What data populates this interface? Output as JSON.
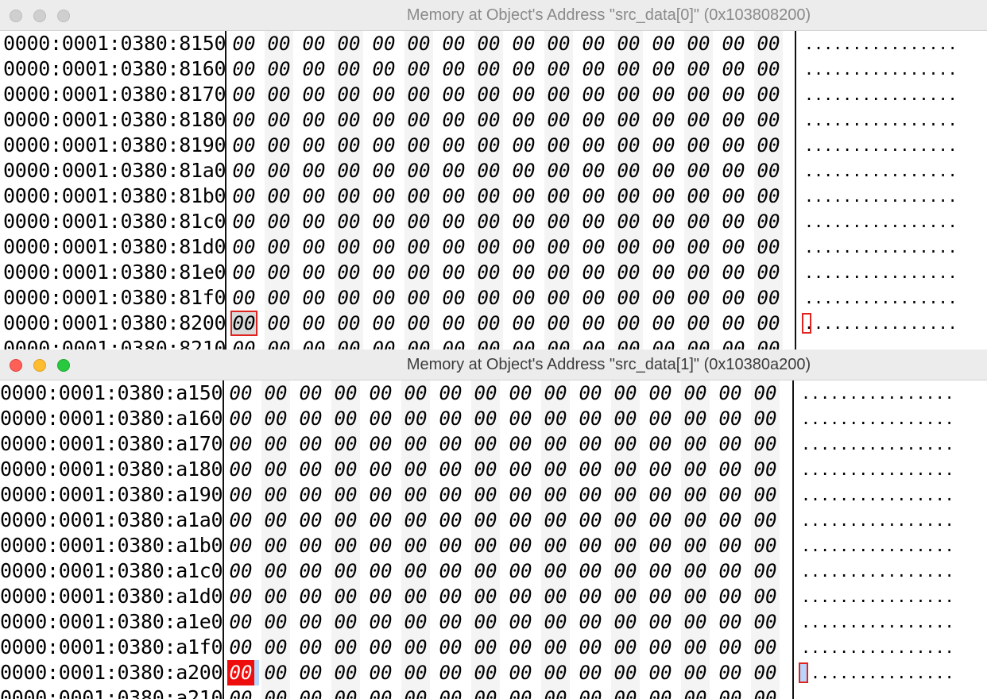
{
  "windows": [
    {
      "title": "Memory at Object's Address \"src_data[0]\" (0x103808200)",
      "active": false,
      "addresses": [
        "0000:0001:0380:8150",
        "0000:0001:0380:8160",
        "0000:0001:0380:8170",
        "0000:0001:0380:8180",
        "0000:0001:0380:8190",
        "0000:0001:0380:81a0",
        "0000:0001:0380:81b0",
        "0000:0001:0380:81c0",
        "0000:0001:0380:81d0",
        "0000:0001:0380:81e0",
        "0000:0001:0380:81f0",
        "0000:0001:0380:8200",
        "0000:0001:0380:8210"
      ],
      "byte_value": "00",
      "ascii_value": "................",
      "selected_row": 11
    },
    {
      "title": "Memory at Object's Address \"src_data[1]\" (0x10380a200)",
      "active": true,
      "addresses": [
        "0000:0001:0380:a150",
        "0000:0001:0380:a160",
        "0000:0001:0380:a170",
        "0000:0001:0380:a180",
        "0000:0001:0380:a190",
        "0000:0001:0380:a1a0",
        "0000:0001:0380:a1b0",
        "0000:0001:0380:a1c0",
        "0000:0001:0380:a1d0",
        "0000:0001:0380:a1e0",
        "0000:0001:0380:a1f0",
        "0000:0001:0380:a200",
        "0000:0001:0380:a210"
      ],
      "byte_value": "00",
      "ascii_value": "................",
      "selected_row": 11
    }
  ]
}
